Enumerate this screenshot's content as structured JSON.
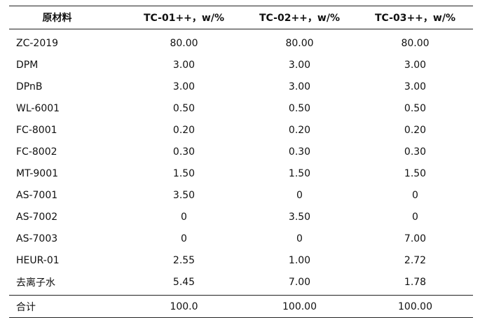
{
  "table": {
    "headers": [
      "原材料",
      "TC-01++，w/%",
      "TC-02++，w/%",
      "TC-03++，w/%"
    ],
    "rows": [
      [
        "ZC-2019",
        "80.00",
        "80.00",
        "80.00"
      ],
      [
        "DPM",
        "3.00",
        "3.00",
        "3.00"
      ],
      [
        "DPnB",
        "3.00",
        "3.00",
        "3.00"
      ],
      [
        "WL-6001",
        "0.50",
        "0.50",
        "0.50"
      ],
      [
        "FC-8001",
        "0.20",
        "0.20",
        "0.20"
      ],
      [
        "FC-8002",
        "0.30",
        "0.30",
        "0.30"
      ],
      [
        "MT-9001",
        "1.50",
        "1.50",
        "1.50"
      ],
      [
        "AS-7001",
        "3.50",
        "0",
        "0"
      ],
      [
        "AS-7002",
        "0",
        "3.50",
        "0"
      ],
      [
        "AS-7003",
        "0",
        "0",
        "7.00"
      ],
      [
        "HEUR-01",
        "2.55",
        "1.00",
        "2.72"
      ],
      [
        "去离子水",
        "5.45",
        "7.00",
        "1.78"
      ]
    ],
    "total": [
      "合计",
      "100.0",
      "100.00",
      "100.00"
    ]
  }
}
